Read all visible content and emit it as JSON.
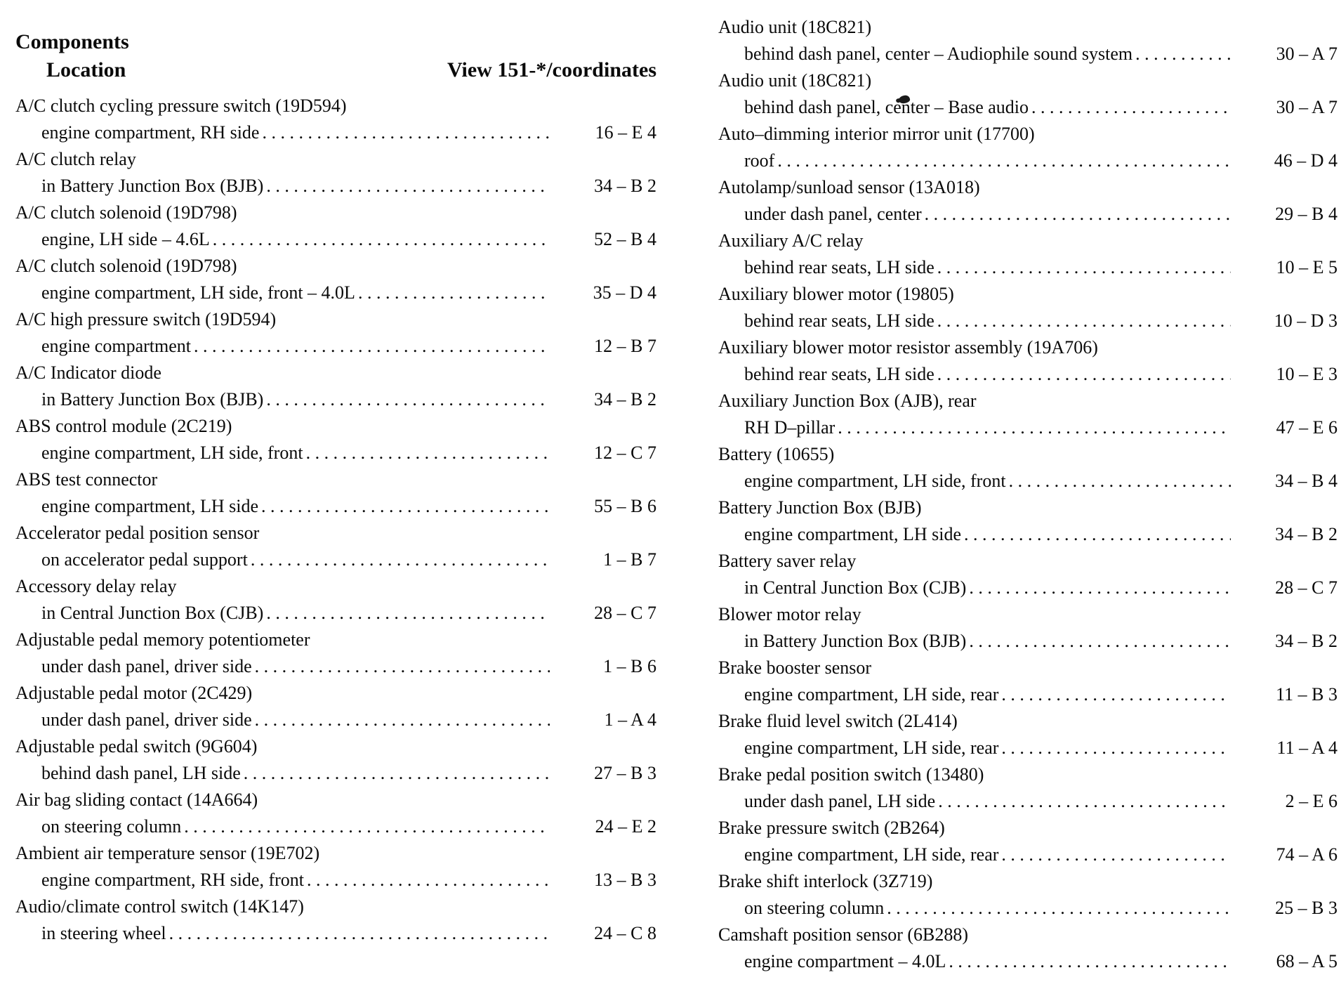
{
  "header": {
    "title": "Components",
    "col_location": "Location",
    "col_view": "View 151-*/coordinates"
  },
  "left_entries": [
    {
      "name": "A/C clutch cycling pressure switch (19D594)",
      "location": "engine compartment, RH side",
      "coord": "16 – E 4"
    },
    {
      "name": "A/C clutch relay",
      "location": "in Battery Junction Box (BJB)",
      "coord": "34 – B 2"
    },
    {
      "name": "A/C clutch solenoid (19D798)",
      "location": "engine, LH side – 4.6L",
      "coord": "52 – B 4"
    },
    {
      "name": "A/C clutch solenoid (19D798)",
      "location": "engine compartment, LH side, front – 4.0L",
      "coord": "35 – D 4"
    },
    {
      "name": "A/C high pressure switch (19D594)",
      "location": "engine compartment",
      "coord": "12 – B 7"
    },
    {
      "name": "A/C Indicator diode",
      "location": "in Battery Junction Box (BJB)",
      "coord": "34 – B 2"
    },
    {
      "name": "ABS control module (2C219)",
      "location": "engine compartment, LH side, front",
      "coord": "12 – C 7"
    },
    {
      "name": "ABS test connector",
      "location": "engine compartment, LH side",
      "coord": "55 – B 6"
    },
    {
      "name": "Accelerator pedal position sensor",
      "location": "on accelerator pedal support",
      "coord": "1 – B 7"
    },
    {
      "name": "Accessory delay relay",
      "location": "in Central Junction Box (CJB)",
      "coord": "28 – C 7"
    },
    {
      "name": "Adjustable pedal memory potentiometer",
      "location": "under dash panel, driver side",
      "coord": "1 – B 6"
    },
    {
      "name": "Adjustable pedal motor (2C429)",
      "location": "under dash panel, driver side",
      "coord": "1 – A 4"
    },
    {
      "name": "Adjustable pedal switch (9G604)",
      "location": "behind dash panel, LH side",
      "coord": "27 – B 3"
    },
    {
      "name": "Air bag sliding contact (14A664)",
      "location": "on steering column",
      "coord": "24 – E 2"
    },
    {
      "name": "Ambient air temperature sensor (19E702)",
      "location": "engine compartment, RH side, front",
      "coord": "13 – B 3"
    },
    {
      "name": "Audio/climate control switch (14K147)",
      "location": "in steering wheel",
      "coord": "24 – C 8"
    }
  ],
  "right_entries": [
    {
      "name": "Audio unit (18C821)",
      "location": "behind dash panel, center – Audiophile sound system",
      "coord": "30 – A 7"
    },
    {
      "name": "Audio unit (18C821)",
      "location": "behind dash panel, center – Base audio",
      "coord": "30 – A 7"
    },
    {
      "name": "Auto–dimming interior mirror unit (17700)",
      "location": "roof",
      "coord": "46 – D 4"
    },
    {
      "name": "Autolamp/sunload sensor (13A018)",
      "location": "under dash panel, center",
      "coord": "29 – B 4"
    },
    {
      "name": "Auxiliary A/C relay",
      "location": "behind rear seats, LH side",
      "coord": "10 – E 5"
    },
    {
      "name": "Auxiliary blower motor (19805)",
      "location": "behind rear seats, LH side",
      "coord": "10 – D 3"
    },
    {
      "name": "Auxiliary blower motor resistor assembly (19A706)",
      "location": "behind rear seats, LH side",
      "coord": "10 – E 3"
    },
    {
      "name": "Auxiliary Junction Box (AJB), rear",
      "location": "RH D–pillar",
      "coord": "47 – E 6"
    },
    {
      "name": "Battery (10655)",
      "location": "engine compartment, LH side, front",
      "coord": "34 – B 4"
    },
    {
      "name": "Battery Junction Box (BJB)",
      "location": "engine compartment, LH side",
      "coord": "34 – B 2"
    },
    {
      "name": "Battery saver relay",
      "location": "in Central Junction Box (CJB)",
      "coord": "28 – C 7"
    },
    {
      "name": "Blower motor relay",
      "location": "in Battery Junction Box (BJB)",
      "coord": "34 – B 2"
    },
    {
      "name": "Brake booster sensor",
      "location": "engine compartment, LH side, rear",
      "coord": "11 – B 3"
    },
    {
      "name": "Brake fluid level switch (2L414)",
      "location": "engine compartment, LH side, rear",
      "coord": "11 – A 4"
    },
    {
      "name": "Brake pedal position switch (13480)",
      "location": "under dash panel, LH side",
      "coord": "2 – E 6"
    },
    {
      "name": "Brake pressure switch (2B264)",
      "location": "engine compartment, LH side, rear",
      "coord": "74 – A 6"
    },
    {
      "name": "Brake shift interlock (3Z719)",
      "location": "on steering column",
      "coord": "25 – B 3"
    },
    {
      "name": "Camshaft position sensor (6B288)",
      "location": "engine compartment – 4.0L",
      "coord": "68 – A 5"
    }
  ]
}
